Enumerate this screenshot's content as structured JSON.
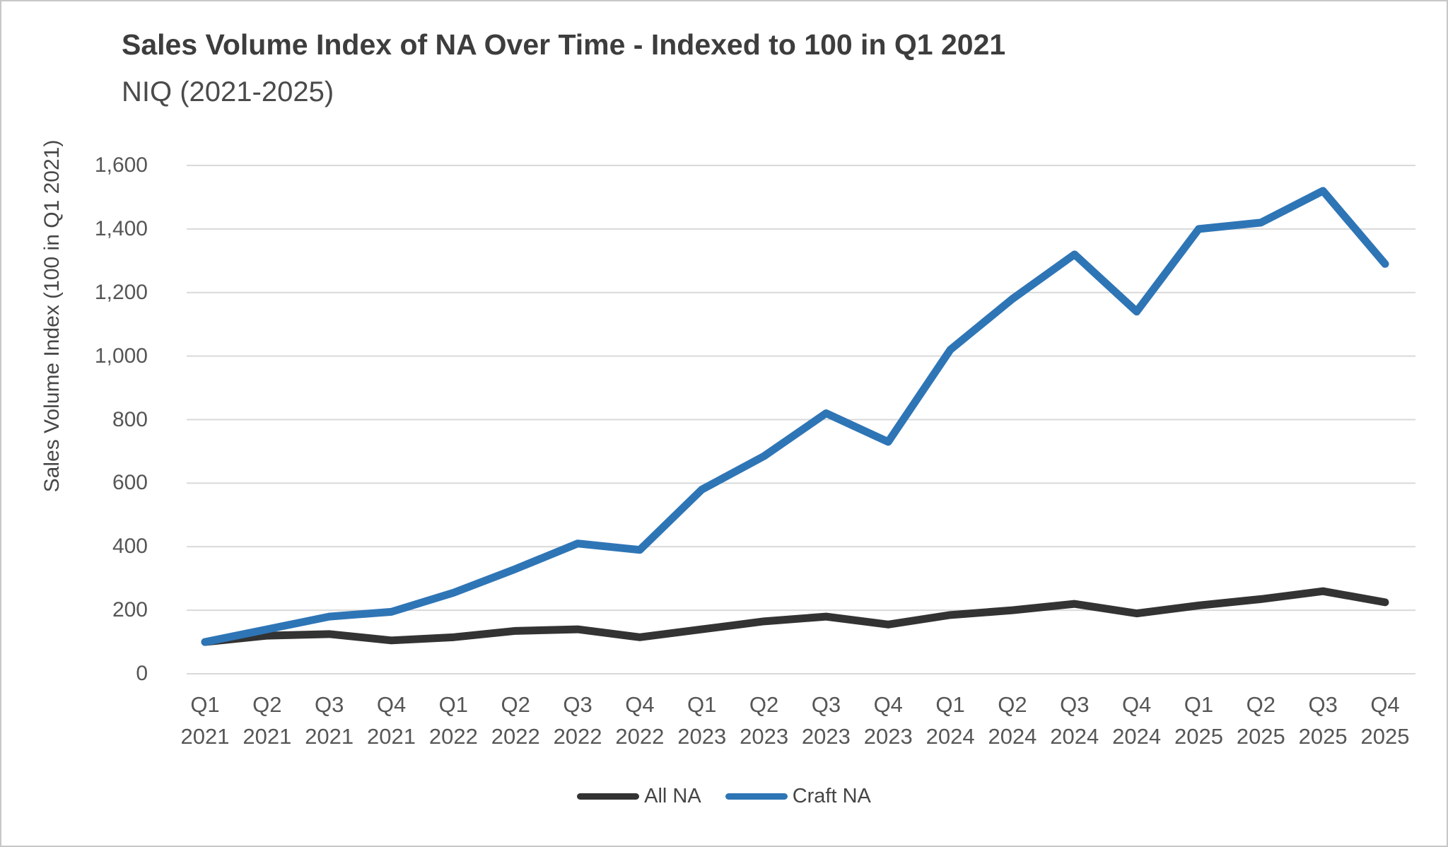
{
  "header": {
    "title": "Sales Volume Index of NA Over Time - Indexed to 100 in Q1 2021",
    "subtitle": "NIQ (2021-2025)"
  },
  "chart_data": {
    "type": "line",
    "title": "Sales Volume Index of NA Over Time - Indexed to 100 in Q1 2021",
    "subtitle": "NIQ (2021-2025)",
    "xlabel": "",
    "ylabel": "Sales Volume Index (100 in Q1 2021)",
    "ylim": [
      0,
      1600
    ],
    "ytick_step": 200,
    "yticks": [
      0,
      200,
      400,
      600,
      800,
      1000,
      1200,
      1400,
      1600
    ],
    "grid": true,
    "legend_position": "bottom",
    "categories": [
      [
        "Q1",
        "2021"
      ],
      [
        "Q2",
        "2021"
      ],
      [
        "Q3",
        "2021"
      ],
      [
        "Q4",
        "2021"
      ],
      [
        "Q1",
        "2022"
      ],
      [
        "Q2",
        "2022"
      ],
      [
        "Q3",
        "2022"
      ],
      [
        "Q4",
        "2022"
      ],
      [
        "Q1",
        "2023"
      ],
      [
        "Q2",
        "2023"
      ],
      [
        "Q3",
        "2023"
      ],
      [
        "Q4",
        "2023"
      ],
      [
        "Q1",
        "2024"
      ],
      [
        "Q2",
        "2024"
      ],
      [
        "Q3",
        "2024"
      ],
      [
        "Q4",
        "2024"
      ],
      [
        "Q1",
        "2025"
      ],
      [
        "Q2",
        "2025"
      ],
      [
        "Q3",
        "2025"
      ],
      [
        "Q4",
        "2025"
      ]
    ],
    "series": [
      {
        "name": "All NA",
        "color": "#333333",
        "values": [
          100,
          120,
          125,
          105,
          115,
          135,
          140,
          115,
          140,
          165,
          180,
          155,
          185,
          200,
          220,
          190,
          215,
          235,
          260,
          225
        ]
      },
      {
        "name": "Craft NA",
        "color": "#2E75B6",
        "values": [
          100,
          140,
          180,
          195,
          255,
          330,
          410,
          390,
          580,
          685,
          820,
          730,
          1020,
          1180,
          1320,
          1140,
          1400,
          1420,
          1520,
          1290
        ]
      }
    ],
    "gridline_color": "#d9d9d9",
    "tick_label_color": "#565656"
  },
  "legend": {
    "items": [
      {
        "label": "All NA",
        "color": "#333333"
      },
      {
        "label": "Craft NA",
        "color": "#2E75B6"
      }
    ]
  }
}
